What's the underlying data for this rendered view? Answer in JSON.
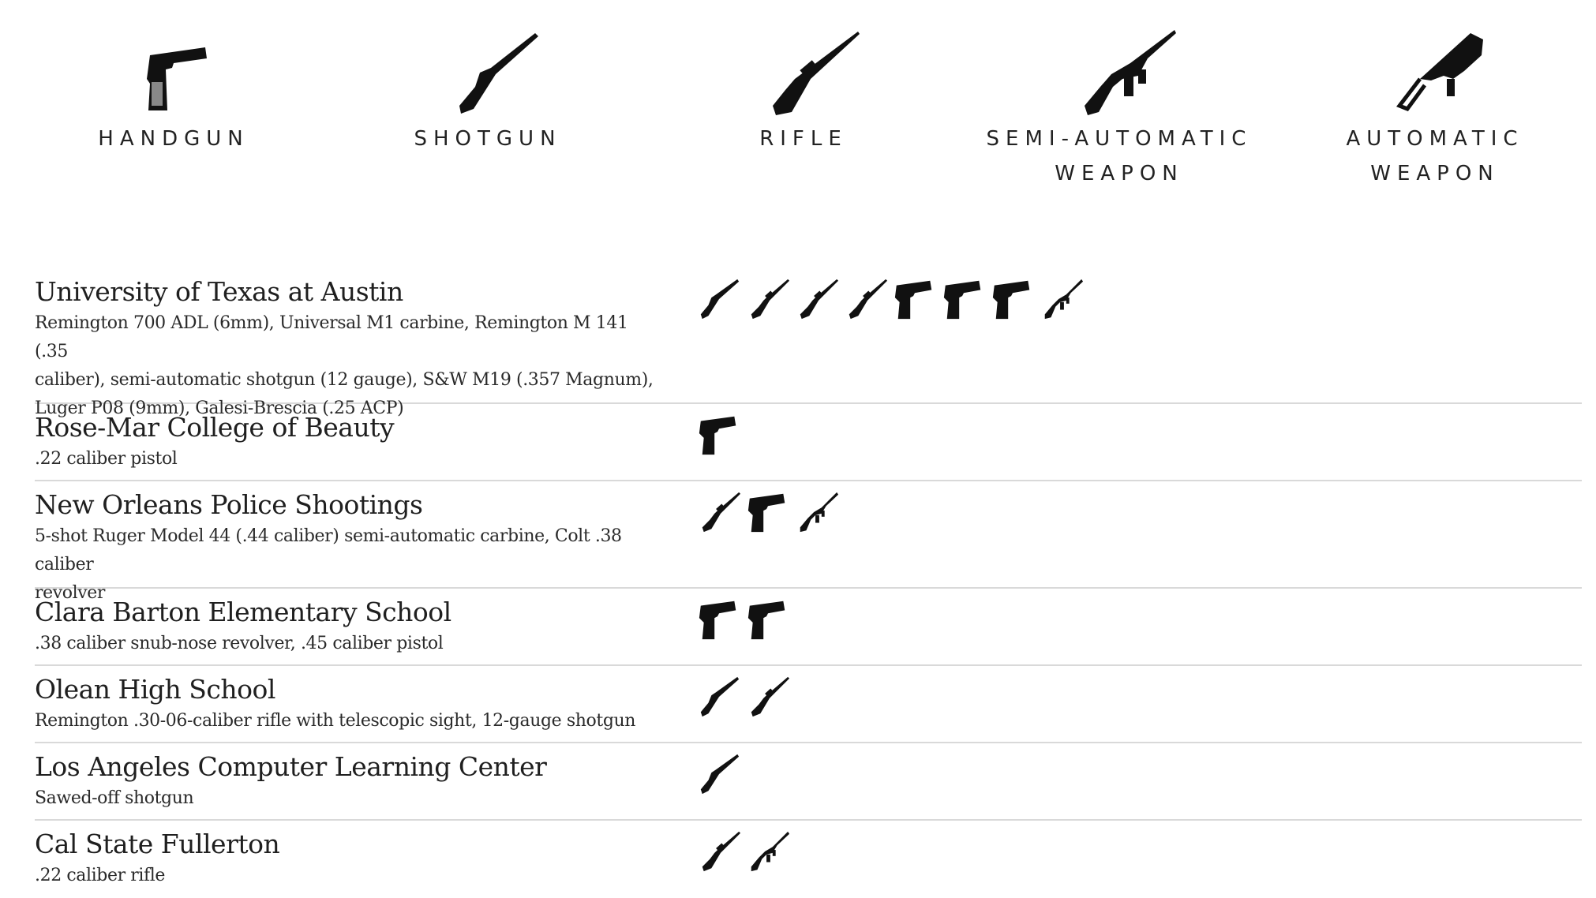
{
  "legend": [
    {
      "key": "handgun",
      "icon": "handgun-icon",
      "label_line1": "HANDGUN",
      "label_line2": ""
    },
    {
      "key": "shotgun",
      "icon": "shotgun-icon",
      "label_line1": "SHOTGUN",
      "label_line2": ""
    },
    {
      "key": "rifle",
      "icon": "rifle-icon",
      "label_line1": "RIFLE",
      "label_line2": ""
    },
    {
      "key": "semi",
      "icon": "semi-automatic-weapon-icon",
      "label_line1": "SEMI-AUTOMATIC",
      "label_line2": "WEAPON"
    },
    {
      "key": "auto",
      "icon": "automatic-weapon-icon",
      "label_line1": "AUTOMATIC",
      "label_line2": "WEAPON"
    }
  ],
  "rows": [
    {
      "title": "University of Texas at Austin",
      "weapons_line1": "Remington 700 ADL (6mm), Universal M1 carbine, Remington M 141 (.35",
      "weapons_line2": "caliber), semi-automatic shotgun (12 gauge), S&W M19 (.357 Magnum),",
      "weapons_line3": "Luger P08 (9mm), Galesi-Brescia (.25 ACP)",
      "icons": [
        "shotgun",
        "rifle",
        "rifle",
        "rifle",
        "handgun",
        "handgun",
        "handgun",
        "semi"
      ]
    },
    {
      "title": "Rose-Mar College of Beauty",
      "weapons_line1": ".22 caliber pistol",
      "weapons_line2": "",
      "weapons_line3": "",
      "icons": [
        "handgun"
      ]
    },
    {
      "title": "New Orleans Police Shootings",
      "weapons_line1": "5-shot Ruger Model 44 (.44 caliber) semi-automatic carbine, Colt .38 caliber",
      "weapons_line2": "revolver",
      "weapons_line3": "",
      "icons": [
        "rifle",
        "handgun",
        "semi"
      ]
    },
    {
      "title": "Clara Barton Elementary School",
      "weapons_line1": ".38 caliber snub-nose revolver, .45 caliber pistol",
      "weapons_line2": "",
      "weapons_line3": "",
      "icons": [
        "handgun",
        "handgun"
      ]
    },
    {
      "title": "Olean High School",
      "weapons_line1": "Remington .30-06-caliber rifle with telescopic sight, 12-gauge shotgun",
      "weapons_line2": "",
      "weapons_line3": "",
      "icons": [
        "shotgun",
        "rifle"
      ]
    },
    {
      "title": "Los Angeles Computer Learning Center",
      "weapons_line1": "Sawed-off shotgun",
      "weapons_line2": "",
      "weapons_line3": "",
      "icons": [
        "shotgun"
      ]
    },
    {
      "title": "Cal State Fullerton",
      "weapons_line1": ".22 caliber rifle",
      "weapons_line2": "",
      "weapons_line3": "",
      "icons": [
        "rifle",
        "semi"
      ]
    }
  ]
}
